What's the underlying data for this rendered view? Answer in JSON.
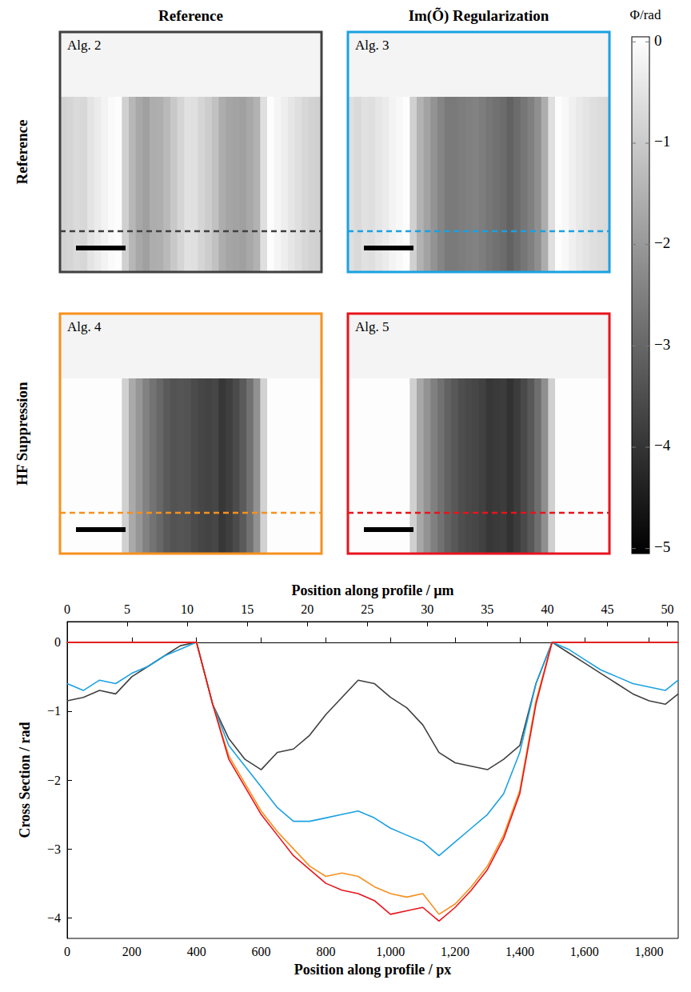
{
  "chart_data": {
    "type": "line",
    "x_label": "Position along profile / px",
    "x2_label": "Position along profile / µm",
    "y_label": "Cross Section / rad",
    "xlim": [
      0,
      1890
    ],
    "xticks": [
      0,
      200,
      400,
      600,
      800,
      {
        "value": 1000,
        "label": "1,000"
      },
      {
        "value": 1200,
        "label": "1,200"
      },
      {
        "value": 1400,
        "label": "1,400"
      },
      {
        "value": 1600,
        "label": "1,600"
      },
      {
        "value": 1800,
        "label": "1,800"
      }
    ],
    "x2lim": [
      0,
      50.9
    ],
    "x2ticks": [
      0,
      5,
      10,
      15,
      20,
      25,
      30,
      35,
      40,
      45,
      50
    ],
    "ylim": [
      -4.3,
      0.3
    ],
    "yticks": [
      {
        "value": -4,
        "label": "−4"
      },
      {
        "value": -3,
        "label": "−3"
      },
      {
        "value": -2,
        "label": "−2"
      },
      {
        "value": -1,
        "label": "−1"
      },
      0
    ],
    "grid": false,
    "x": [
      0,
      50,
      100,
      150,
      200,
      250,
      300,
      350,
      400,
      450,
      500,
      550,
      600,
      650,
      700,
      750,
      800,
      850,
      900,
      950,
      1000,
      1050,
      1100,
      1150,
      1200,
      1250,
      1300,
      1350,
      1400,
      1450,
      1500,
      1550,
      1600,
      1650,
      1700,
      1750,
      1800,
      1850,
      1890
    ],
    "series": [
      {
        "name": "Alg. 2",
        "color": "#404040",
        "values": [
          -0.85,
          -0.8,
          -0.7,
          -0.75,
          -0.5,
          -0.35,
          -0.2,
          -0.05,
          0,
          -0.9,
          -1.4,
          -1.7,
          -1.85,
          -1.6,
          -1.55,
          -1.35,
          -1.05,
          -0.8,
          -0.55,
          -0.6,
          -0.8,
          -0.95,
          -1.2,
          -1.6,
          -1.75,
          -1.8,
          -1.85,
          -1.7,
          -1.5,
          -0.6,
          0,
          -0.15,
          -0.3,
          -0.45,
          -0.6,
          -0.75,
          -0.85,
          -0.9,
          -0.75
        ]
      },
      {
        "name": "Alg. 3",
        "color": "#1ba1e2",
        "values": [
          -0.6,
          -0.7,
          -0.55,
          -0.6,
          -0.45,
          -0.35,
          -0.2,
          -0.1,
          0,
          -0.9,
          -1.5,
          -1.8,
          -2.1,
          -2.4,
          -2.6,
          -2.6,
          -2.55,
          -2.5,
          -2.45,
          -2.55,
          -2.7,
          -2.8,
          -2.9,
          -3.1,
          -2.9,
          -2.7,
          -2.5,
          -2.2,
          -1.6,
          -0.6,
          0,
          -0.1,
          -0.25,
          -0.4,
          -0.5,
          -0.6,
          -0.65,
          -0.7,
          -0.55
        ]
      },
      {
        "name": "Alg. 4",
        "color": "#f7901e",
        "values": [
          0,
          0,
          0,
          0,
          0,
          0,
          0,
          0,
          0,
          -0.9,
          -1.65,
          -2.05,
          -2.45,
          -2.75,
          -3.0,
          -3.25,
          -3.4,
          -3.35,
          -3.4,
          -3.55,
          -3.65,
          -3.7,
          -3.65,
          -3.95,
          -3.8,
          -3.55,
          -3.25,
          -2.8,
          -2.15,
          -0.85,
          0,
          0,
          0,
          0,
          0,
          0,
          0,
          0,
          0
        ]
      },
      {
        "name": "Alg. 5",
        "color": "#e8141c",
        "values": [
          0,
          0,
          0,
          0,
          0,
          0,
          0,
          0,
          0,
          -0.9,
          -1.7,
          -2.1,
          -2.5,
          -2.8,
          -3.1,
          -3.3,
          -3.5,
          -3.6,
          -3.65,
          -3.75,
          -3.95,
          -3.9,
          -3.85,
          -4.05,
          -3.85,
          -3.6,
          -3.3,
          -2.85,
          -2.2,
          -0.9,
          0,
          0,
          0,
          0,
          0,
          0,
          0,
          0,
          0
        ]
      }
    ]
  },
  "image_panels": {
    "column_titles": [
      "Reference",
      "Im(Õ) Regularization"
    ],
    "row_titles": [
      "Reference",
      "HF Suppression"
    ],
    "colorbar": {
      "label": "Φ/rad",
      "lim": [
        -5.05,
        0.05
      ],
      "ticks": [
        0,
        {
          "value": -1,
          "label": "−1"
        },
        {
          "value": -2,
          "label": "−2"
        },
        {
          "value": -3,
          "label": "−3"
        },
        {
          "value": -4,
          "label": "−4"
        },
        {
          "value": -5,
          "label": "−5"
        }
      ]
    }
  }
}
